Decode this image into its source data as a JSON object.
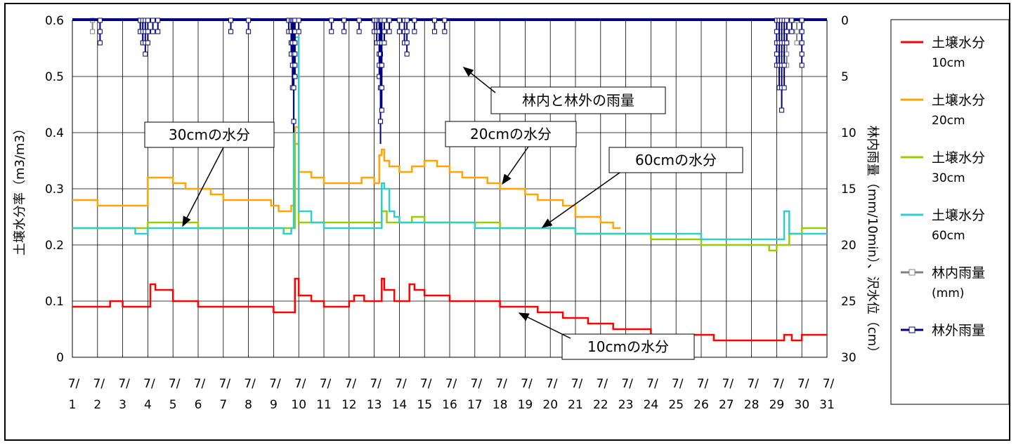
{
  "chart_data": {
    "type": "line",
    "xlabel": "",
    "ylabel": "土壌水分率（m3/m3）",
    "y2label": "林内雨量（mm/10min）、沢水位（cm）",
    "ylim": [
      0,
      0.6
    ],
    "y2lim": [
      30,
      0
    ],
    "y_ticks": [
      "0",
      "0.1",
      "0.2",
      "0.3",
      "0.4",
      "0.5",
      "0.6"
    ],
    "y2_ticks": [
      "0",
      "5",
      "10",
      "15",
      "20",
      "25",
      "30"
    ],
    "x_month_label": "7/",
    "x_days": [
      "1",
      "2",
      "3",
      "4",
      "5",
      "6",
      "7",
      "8",
      "9",
      "10",
      "11",
      "12",
      "13",
      "14",
      "15",
      "16",
      "17",
      "18",
      "19",
      "20",
      "21",
      "22",
      "23",
      "24",
      "25",
      "26",
      "27",
      "28",
      "29",
      "30",
      "31"
    ],
    "grid": true,
    "legend_position": "right",
    "legend": [
      {
        "name": "土壌水分",
        "sub": "10cm",
        "color": "#ff0000",
        "marker": "none"
      },
      {
        "name": "土壌水分",
        "sub": "20cm",
        "color": "#ffa500",
        "marker": "none"
      },
      {
        "name": "土壌水分",
        "sub": "30cm",
        "color": "#99cc00",
        "marker": "none"
      },
      {
        "name": "土壌水分",
        "sub": "60cm",
        "color": "#33cccc",
        "marker": "none"
      },
      {
        "name": "林内雨量",
        "sub": "(mm)",
        "color": "#808080",
        "marker": "square"
      },
      {
        "name": "林外雨量",
        "sub": "",
        "color": "#000080",
        "marker": "square"
      }
    ],
    "annotations": [
      "林内と林外の雨量",
      "30cmの水分",
      "20cmの水分",
      "60cmの水分",
      "10cmの水分"
    ],
    "series": [
      {
        "name": "土壌水分 10cm",
        "axis": "left",
        "color": "#ff0000",
        "x": [
          1,
          2,
          2.5,
          3,
          3.8,
          4.1,
          4.3,
          4.5,
          5,
          5.5,
          6,
          8,
          9,
          9.2,
          9.7,
          9.85,
          10,
          10.2,
          10.5,
          11,
          11.5,
          12,
          12.2,
          12.6,
          13.2,
          13.3,
          13.4,
          13.6,
          13.8,
          14.2,
          14.4,
          14.6,
          15,
          15.5,
          16,
          17,
          17.5,
          18,
          18.5,
          19,
          19.5,
          20,
          20.5,
          21,
          21.5,
          22,
          22.5,
          23,
          23.5,
          24,
          24.5,
          25,
          25.5,
          26,
          26.5,
          27,
          27.5,
          28,
          28.5,
          29,
          29.3,
          29.6,
          30,
          31
        ],
        "y": [
          0.09,
          0.09,
          0.1,
          0.09,
          0.09,
          0.13,
          0.12,
          0.12,
          0.1,
          0.1,
          0.09,
          0.09,
          0.08,
          0.08,
          0.08,
          0.14,
          0.11,
          0.11,
          0.1,
          0.09,
          0.09,
          0.1,
          0.11,
          0.1,
          0.1,
          0.14,
          0.12,
          0.12,
          0.1,
          0.1,
          0.13,
          0.12,
          0.11,
          0.11,
          0.1,
          0.1,
          0.1,
          0.09,
          0.09,
          0.09,
          0.08,
          0.08,
          0.07,
          0.07,
          0.06,
          0.06,
          0.05,
          0.05,
          0.05,
          0.04,
          0.04,
          0.04,
          0.04,
          0.04,
          0.03,
          0.03,
          0.03,
          0.03,
          0.03,
          0.03,
          0.04,
          0.03,
          0.04,
          0.04
        ]
      },
      {
        "name": "土壌水分 20cm",
        "axis": "left",
        "color": "#ffa500",
        "x": [
          1,
          1.5,
          2,
          3,
          3.8,
          4,
          4.5,
          5,
          5.5,
          6,
          6.5,
          7,
          8,
          8.5,
          8.9,
          9.2,
          9.5,
          9.7,
          9.85,
          10,
          10.5,
          11,
          11.5,
          12,
          12.5,
          13,
          13.2,
          13.3,
          13.4,
          13.6,
          13.8,
          14,
          14.5,
          15,
          15.5,
          16,
          16.5,
          17,
          17.5,
          18,
          18.5,
          19,
          19.5,
          20,
          20.5,
          21,
          21.5,
          22,
          22.5,
          22.8
        ],
        "y": [
          0.28,
          0.28,
          0.27,
          0.27,
          0.27,
          0.32,
          0.32,
          0.31,
          0.3,
          0.3,
          0.29,
          0.28,
          0.28,
          0.28,
          0.27,
          0.26,
          0.26,
          0.27,
          0.41,
          0.33,
          0.32,
          0.31,
          0.31,
          0.31,
          0.32,
          0.31,
          0.36,
          0.37,
          0.35,
          0.34,
          0.34,
          0.33,
          0.34,
          0.35,
          0.34,
          0.33,
          0.32,
          0.32,
          0.31,
          0.3,
          0.3,
          0.29,
          0.28,
          0.28,
          0.27,
          0.25,
          0.25,
          0.24,
          0.23,
          0.23
        ]
      },
      {
        "name": "土壌水分 30cm",
        "axis": "left",
        "color": "#99cc00",
        "x": [
          1,
          2,
          3,
          3.5,
          3.9,
          4,
          5,
          6,
          7,
          8,
          9,
          9.5,
          9.8,
          9.85,
          10,
          10.5,
          11,
          11.5,
          12,
          13,
          13.3,
          13.5,
          14,
          14.5,
          15,
          16,
          17,
          18,
          19,
          20,
          20.5,
          21,
          22,
          23,
          23.5,
          24,
          24.5,
          25,
          26,
          27,
          28,
          28.7,
          29,
          29.5,
          30,
          31
        ],
        "y": [
          0.23,
          0.23,
          0.23,
          0.23,
          0.23,
          0.24,
          0.24,
          0.23,
          0.23,
          0.23,
          0.23,
          0.23,
          0.23,
          0.38,
          0.24,
          0.24,
          0.24,
          0.24,
          0.24,
          0.24,
          0.26,
          0.24,
          0.24,
          0.25,
          0.24,
          0.24,
          0.24,
          0.23,
          0.23,
          0.23,
          0.23,
          0.22,
          0.22,
          0.22,
          0.22,
          0.21,
          0.21,
          0.21,
          0.2,
          0.2,
          0.2,
          0.19,
          0.2,
          0.22,
          0.23,
          0.23
        ]
      },
      {
        "name": "土壌水分 60cm",
        "axis": "left",
        "color": "#33cccc",
        "x": [
          1,
          2,
          3,
          3.5,
          4,
          5,
          6,
          7,
          8,
          9,
          9.4,
          9.7,
          9.8,
          9.85,
          10,
          10.5,
          11,
          12,
          13,
          13.2,
          13.3,
          13.4,
          13.6,
          13.8,
          14,
          15,
          16,
          17,
          18,
          19,
          20,
          21,
          22,
          23,
          24,
          25,
          26,
          27,
          28,
          29,
          29.3,
          29.5,
          30,
          31
        ],
        "y": [
          0.23,
          0.23,
          0.23,
          0.22,
          0.23,
          0.23,
          0.23,
          0.23,
          0.23,
          0.23,
          0.22,
          0.23,
          0.5,
          0.57,
          0.26,
          0.24,
          0.23,
          0.23,
          0.23,
          0.23,
          0.31,
          0.3,
          0.26,
          0.25,
          0.24,
          0.24,
          0.24,
          0.23,
          0.23,
          0.23,
          0.23,
          0.22,
          0.22,
          0.22,
          0.22,
          0.22,
          0.21,
          0.21,
          0.21,
          0.21,
          0.26,
          0.22,
          0.22,
          0.22
        ]
      },
      {
        "name": "林内雨量",
        "axis": "right",
        "color": "#808080",
        "x": [
          1.8,
          3.7,
          3.8,
          3.9,
          9.7,
          9.8,
          13.2,
          13.3,
          14.2,
          29.2,
          29.4,
          29.8
        ],
        "y": [
          1,
          1,
          2,
          1,
          2,
          4,
          3,
          6,
          2,
          3,
          4,
          2
        ]
      },
      {
        "name": "林外雨量",
        "axis": "right",
        "color": "#000080",
        "x": [
          2.1,
          3.7,
          3.8,
          3.9,
          4.0,
          4.2,
          4.4,
          7.3,
          8.0,
          9.6,
          9.7,
          9.75,
          9.8,
          9.85,
          10.0,
          11.3,
          11.8,
          12.4,
          13.0,
          13.1,
          13.2,
          13.25,
          13.3,
          13.4,
          13.6,
          14.0,
          14.2,
          14.3,
          14.6,
          15.4,
          15.8,
          29.0,
          29.1,
          29.2,
          29.3,
          29.4,
          29.6,
          30.0
        ],
        "y": [
          2,
          1,
          2,
          3,
          2,
          1,
          1,
          1,
          1,
          1,
          3,
          6,
          10,
          5,
          1,
          1,
          1,
          1,
          1,
          2,
          5,
          11,
          8,
          2,
          1,
          1,
          2,
          3,
          1,
          1,
          1,
          4,
          6,
          8,
          6,
          2,
          1,
          4
        ]
      }
    ]
  }
}
